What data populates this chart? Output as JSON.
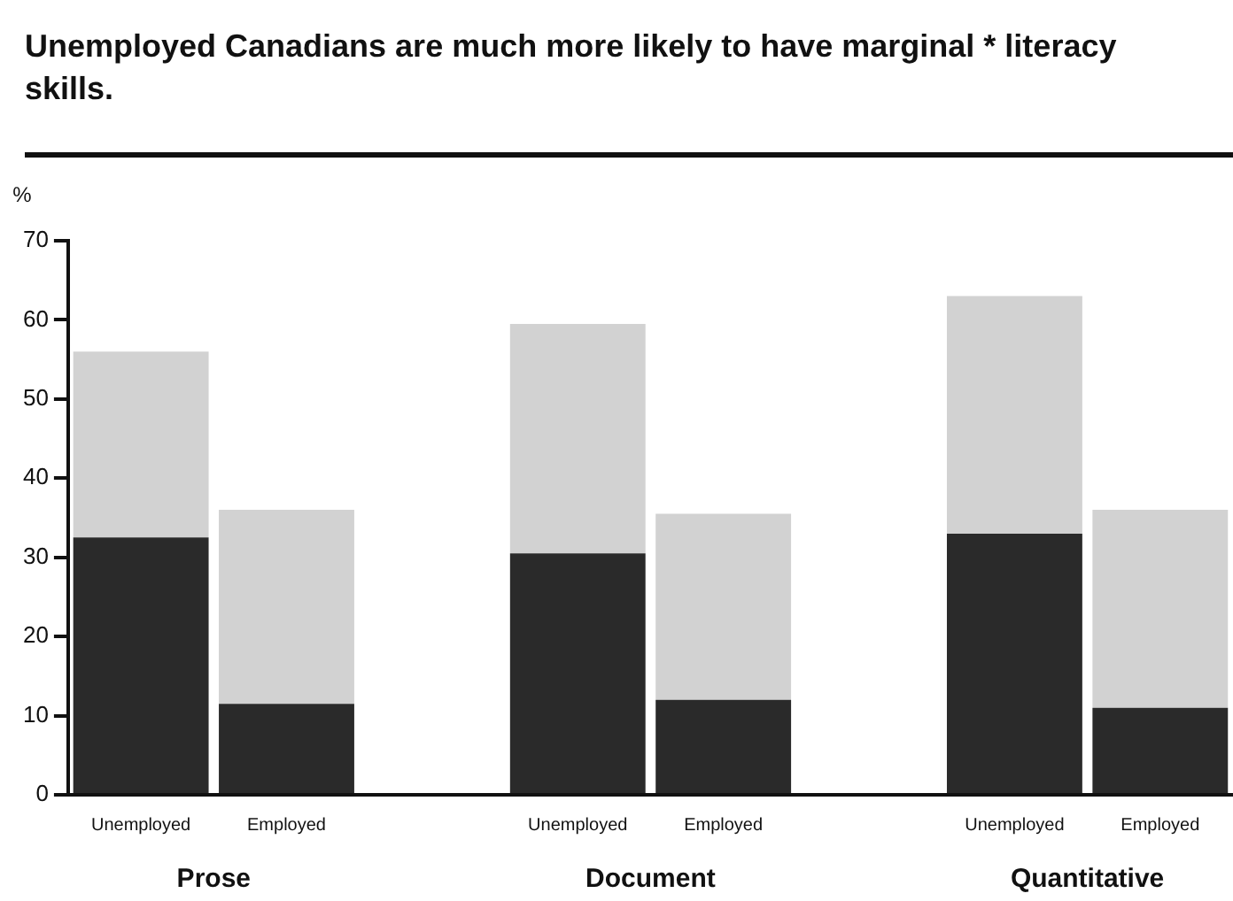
{
  "chart_data": {
    "type": "bar",
    "title": "Unemployed Canadians are much more likely to have marginal * literacy skills.",
    "ylabel": "%",
    "stacked": true,
    "categories": [
      "Unemployed",
      "Employed",
      null,
      "Unemployed",
      "Employed",
      null,
      "Unemployed",
      "Employed"
    ],
    "annotations": [
      "Prose",
      "Document",
      "Quantitative"
    ],
    "series": [
      {
        "color": "#2a2a2a",
        "values": [
          32.5,
          11.5,
          null,
          30.5,
          12,
          null,
          33,
          11
        ]
      },
      {
        "color": "#d2d2d2",
        "values": [
          23.5,
          24.5,
          null,
          29,
          23.5,
          null,
          30,
          25
        ]
      }
    ],
    "ylim": [
      0,
      70
    ],
    "yticks": [
      0,
      10,
      20,
      30,
      40,
      50,
      60,
      70
    ]
  }
}
